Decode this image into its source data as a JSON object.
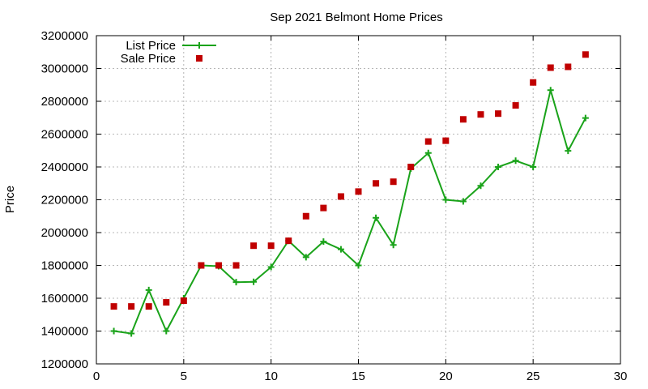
{
  "chart_data": {
    "type": "line",
    "title": "Sep 2021 Belmont Home Prices",
    "xlabel": "",
    "ylabel": "Price",
    "xlim": [
      0,
      30
    ],
    "ylim": [
      1200000,
      3200000
    ],
    "x_ticks": [
      0,
      5,
      10,
      15,
      20,
      25,
      30
    ],
    "y_ticks": [
      1200000,
      1400000,
      1600000,
      1800000,
      2000000,
      2200000,
      2400000,
      2600000,
      2800000,
      3000000,
      3200000
    ],
    "grid": true,
    "legend_position": "top-left",
    "series": [
      {
        "name": "List Price",
        "style": "linespoints",
        "color": "#1aa31a",
        "x": [
          1,
          2,
          3,
          4,
          5,
          6,
          7,
          8,
          9,
          10,
          11,
          12,
          13,
          14,
          15,
          16,
          17,
          18,
          19,
          20,
          21,
          22,
          23,
          24,
          25,
          26,
          27,
          28
        ],
        "values": [
          1400000,
          1385000,
          1650000,
          1400000,
          1600000,
          1800000,
          1795000,
          1698000,
          1700000,
          1790000,
          1950000,
          1850000,
          1945000,
          1898000,
          1800000,
          2090000,
          1925000,
          2390000,
          2485000,
          2200000,
          2190000,
          2285000,
          2400000,
          2438000,
          2400000,
          2868000,
          2498000,
          2698000
        ]
      },
      {
        "name": "Sale Price",
        "style": "points",
        "color": "#c00000",
        "x": [
          1,
          2,
          3,
          4,
          5,
          6,
          7,
          8,
          9,
          10,
          11,
          12,
          13,
          14,
          15,
          16,
          17,
          18,
          19,
          20,
          21,
          22,
          23,
          24,
          25,
          26,
          27,
          28
        ],
        "values": [
          1550000,
          1550000,
          1550000,
          1575000,
          1585000,
          1800000,
          1800000,
          1800000,
          1920000,
          1920000,
          1950000,
          2100000,
          2150000,
          2220000,
          2250000,
          2300000,
          2310000,
          2400000,
          2555000,
          2560000,
          2690000,
          2720000,
          2725000,
          2775000,
          2915000,
          3005000,
          3010000,
          3085000
        ]
      }
    ]
  }
}
